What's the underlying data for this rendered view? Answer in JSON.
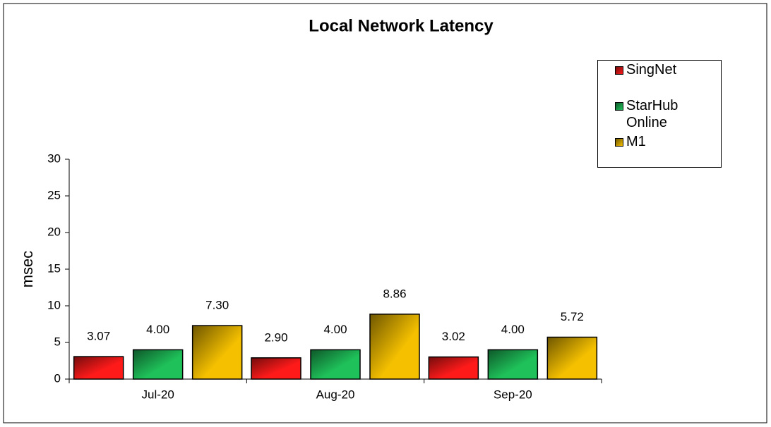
{
  "chart_data": {
    "type": "bar",
    "title": "Local Network Latency",
    "y_label": "msec",
    "categories": [
      "Jul-20",
      "Aug-20",
      "Sep-20"
    ],
    "series": [
      {
        "name": "SingNet",
        "color": "#ff1a1a",
        "values": [
          3.07,
          2.9,
          3.02
        ],
        "value_labels": [
          "3.07",
          "2.90",
          "3.02"
        ]
      },
      {
        "name": "StarHub Online",
        "color": "#1fc25a",
        "values": [
          4,
          4,
          4
        ],
        "value_labels": [
          "4.00",
          "4.00",
          "4.00"
        ]
      },
      {
        "name": "M1",
        "color": "#f5c000",
        "values": [
          7.3,
          8.86,
          5.72
        ],
        "value_labels": [
          "7.30",
          "8.86",
          "5.72"
        ]
      }
    ],
    "ylim": [
      0,
      30
    ],
    "yticks": [
      0,
      5,
      10,
      15,
      20,
      25,
      30
    ],
    "grid": false,
    "legend": "upper right"
  }
}
